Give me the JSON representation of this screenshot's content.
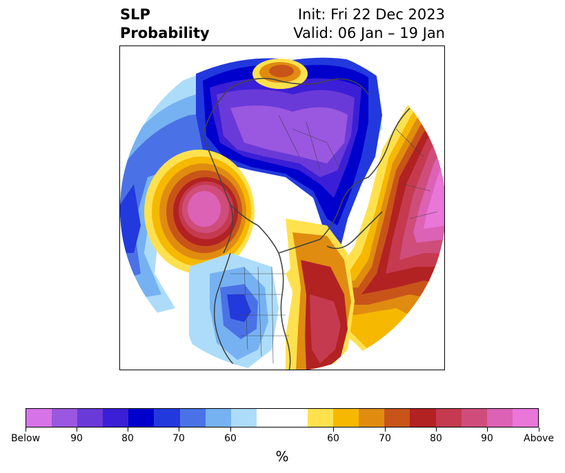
{
  "title": {
    "left_line1": "SLP",
    "left_line2": "Probability",
    "right_line1": "Init: Fri 22 Dec 2023",
    "right_line2": "Valid: 06 Jan – 19 Jan"
  },
  "colorbar": {
    "colors": [
      "#d673e8",
      "#9a57e0",
      "#6a3ad8",
      "#3b1fd6",
      "#0000cc",
      "#2239de",
      "#4a72e6",
      "#76b2f2",
      "#addcfb",
      "#ffffff",
      "#ffffff",
      "#ffe14e",
      "#f6b800",
      "#e08c10",
      "#c8541a",
      "#b22222",
      "#c53a4f",
      "#cf4d7a",
      "#dc62b6",
      "#e976d8"
    ],
    "labels": [
      "Below",
      "90",
      "80",
      "70",
      "60",
      "60",
      "70",
      "80",
      "90",
      "Above"
    ],
    "unit": "%"
  },
  "map": {
    "projection": "north-polar-stereographic",
    "coverage": "North America, North Pacific, North Atlantic, Arctic",
    "features": [
      "Strong below-normal SLP probability over Arctic/Canada (purple-blue)",
      "Above-normal SLP over North Atlantic and Europe (magenta)",
      "Above-normal SLP over NE Pacific (pink-red)",
      "Below-normal SLP over US Southwest (blue)",
      "Above-normal SLP over eastern US/western Atlantic (red)"
    ]
  }
}
